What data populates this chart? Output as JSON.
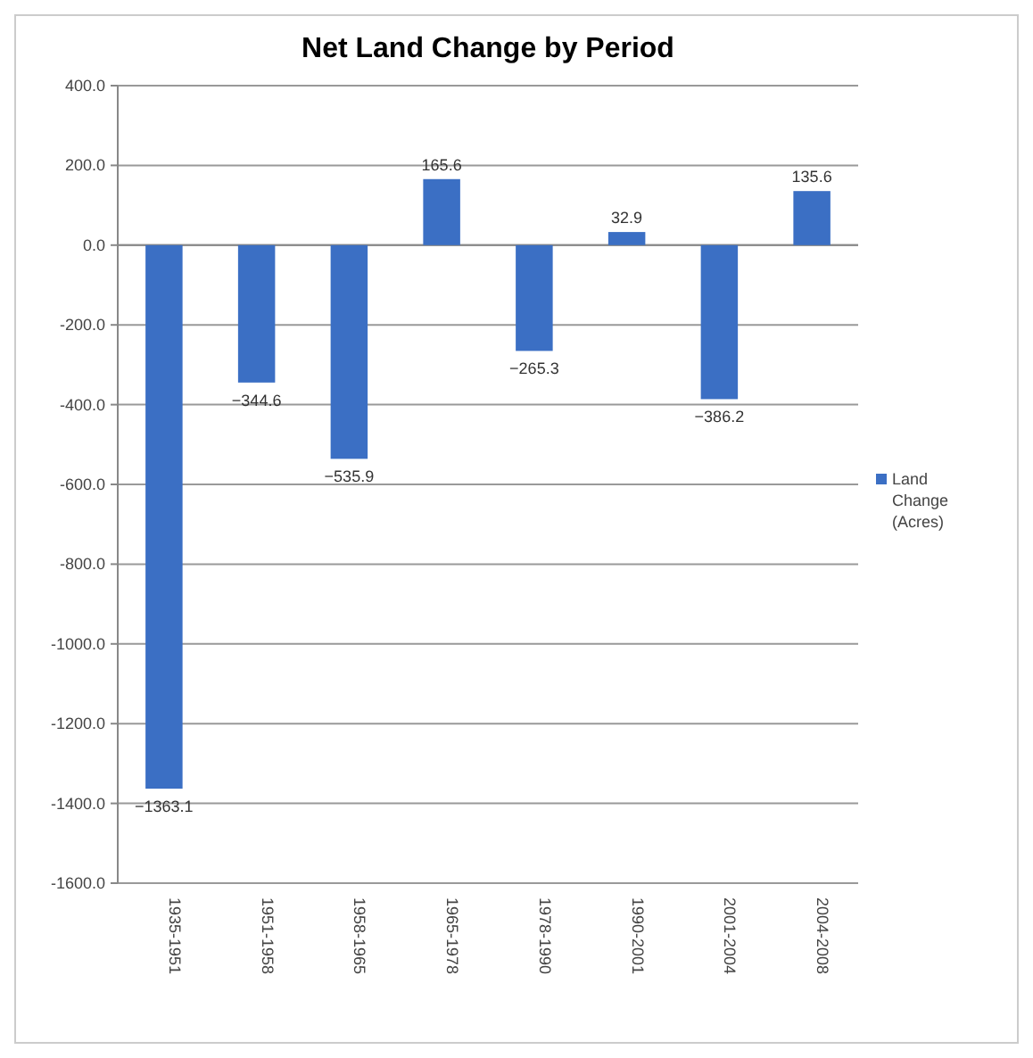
{
  "chart_data": {
    "type": "bar",
    "title": "Net Land Change by Period",
    "categories": [
      "1935-1951",
      "1951-1958",
      "1958-1965",
      "1965-1978",
      "1978-1990",
      "1990-2001",
      "2001-2004",
      "2004-2008"
    ],
    "series": [
      {
        "name": "Land Change (Acres)",
        "color": "#3b6fc4",
        "values": [
          -1363.1,
          -344.6,
          -535.9,
          165.6,
          -265.3,
          32.9,
          -386.2,
          135.6
        ]
      }
    ],
    "ylim": [
      -1600,
      400
    ],
    "yticks": [
      {
        "value": -1600,
        "label": "-1600.0"
      },
      {
        "value": -1400,
        "label": "-1400.0"
      },
      {
        "value": -1200,
        "label": "-1200.0"
      },
      {
        "value": -1000,
        "label": "-1000.0"
      },
      {
        "value": -800,
        "label": "-800.0"
      },
      {
        "value": -600,
        "label": "-600.0"
      },
      {
        "value": -400,
        "label": "-400.0"
      },
      {
        "value": -200,
        "label": "-200.0"
      },
      {
        "value": 0,
        "label": "0.0"
      },
      {
        "value": 200,
        "label": "200.0"
      },
      {
        "value": 400,
        "label": "400.0"
      }
    ],
    "grid": "y",
    "legend": "right",
    "data_labels": true
  }
}
